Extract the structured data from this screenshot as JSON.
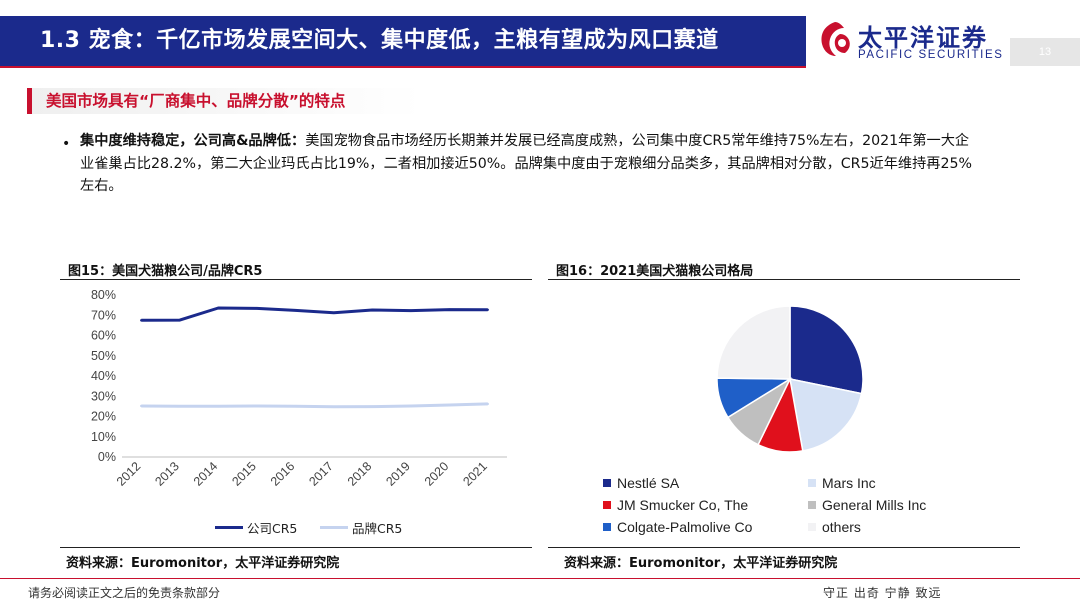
{
  "header": {
    "title": "1.3 宠食：千亿市场发展空间大、集中度低，主粮有望成为风口赛道",
    "logo_cn": "太平洋证券",
    "logo_en": "PACIFIC SECURITIES",
    "page_number": "13"
  },
  "section": {
    "title": "美国市场具有“厂商集中、品牌分散”的特点"
  },
  "body": {
    "bullet": "•",
    "lead": "集中度维持稳定，公司高&品牌低：",
    "text": "美国宠物食品市场经历长期兼并发展已经高度成熟，公司集中度CR5常年维持75%左右，2021年第一大企业雀巢占比28.2%，第二大企业玛氏占比19%，二者相加接近50%。品牌集中度由于宠粮细分品类多，其品牌相对分散，CR5近年维持再25%左右。"
  },
  "figure15": {
    "title": "图15：美国犬猫粮公司/品牌CR5",
    "source": "资料来源：Euromonitor，太平洋证券研究院"
  },
  "figure16": {
    "title": "图16：2021美国犬猫粮公司格局",
    "source": "资料来源：Euromonitor，太平洋证券研究院"
  },
  "chart_data": [
    {
      "type": "line",
      "x": [
        "2012",
        "2013",
        "2014",
        "2015",
        "2016",
        "2017",
        "2018",
        "2019",
        "2020",
        "2021"
      ],
      "ylim": [
        0,
        80
      ],
      "yticks": [
        "0%",
        "10%",
        "20%",
        "30%",
        "40%",
        "50%",
        "60%",
        "70%",
        "80%"
      ],
      "series": [
        {
          "name": "公司CR5",
          "color": "#1b2a8c",
          "values": [
            67.5,
            67.6,
            73.6,
            73.4,
            72.4,
            71.2,
            72.6,
            72.3,
            72.8,
            72.7
          ]
        },
        {
          "name": "品牌CR5",
          "color": "#c5d3ef",
          "values": [
            25.2,
            25.1,
            25.1,
            25.2,
            25.1,
            24.8,
            24.9,
            25.2,
            25.7,
            26.2
          ]
        }
      ],
      "legend_position": "bottom",
      "grid": false
    },
    {
      "type": "pie",
      "slices": [
        {
          "name": "Nestlé SA",
          "value": 28.2,
          "color": "#1b2a8c"
        },
        {
          "name": "Mars Inc",
          "value": 19.0,
          "color": "#d6e2f5"
        },
        {
          "name": "JM Smucker Co, The",
          "value": 10.0,
          "color": "#e0101c"
        },
        {
          "name": "General Mills Inc",
          "value": 9.0,
          "color": "#bfbfbf"
        },
        {
          "name": "Colgate-Palmolive Co",
          "value": 9.0,
          "color": "#1f5fc8"
        },
        {
          "name": "others",
          "value": 24.8,
          "color": "#f2f2f4"
        }
      ],
      "legend_position": "bottom"
    }
  ],
  "footer": {
    "disclaimer": "请务必阅读正文之后的免责条款部分",
    "slogan": "守正 出奇 宁静 致远"
  }
}
